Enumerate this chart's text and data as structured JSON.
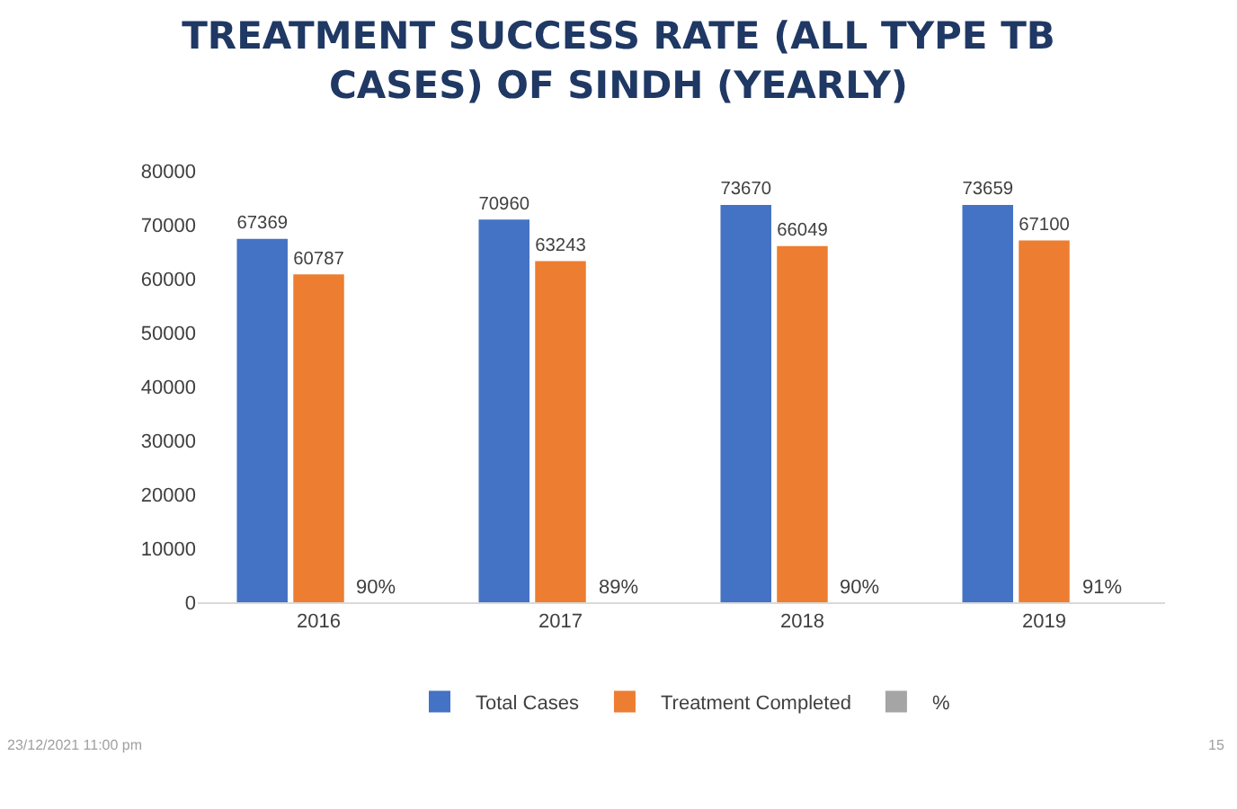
{
  "chart_data": {
    "type": "bar",
    "title": "TREATMENT SUCCESS RATE (ALL TYPE TB CASES) OF SINDH (YEARLY)",
    "categories": [
      "2016",
      "2017",
      "2018",
      "2019"
    ],
    "series": [
      {
        "name": "Total Cases",
        "color": "#4472c4",
        "values": [
          67369,
          70960,
          73670,
          73659
        ],
        "value_labels": [
          "67369",
          "70960",
          "73670",
          "73659"
        ]
      },
      {
        "name": "Treatment Completed",
        "color": "#ed7d31",
        "values": [
          60787,
          63243,
          66049,
          67100
        ],
        "value_labels": [
          "60787",
          "63243",
          "66049",
          "67100"
        ]
      },
      {
        "name": "%",
        "color": "#a5a5a5",
        "values": [
          null,
          null,
          null,
          null
        ]
      }
    ],
    "ylim": [
      0,
      80000
    ],
    "yticks": [
      0,
      10000,
      20000,
      30000,
      40000,
      50000,
      60000,
      70000,
      80000
    ],
    "grid": false,
    "legend": "bottom",
    "annotations": [
      {
        "text": "90%",
        "x": "2016",
        "y": 0
      },
      {
        "text": "89%",
        "x": "2017",
        "y": 0
      },
      {
        "text": "90%",
        "x": "2018",
        "y": 0
      },
      {
        "text": "91%",
        "x": "2019",
        "y": 0
      },
      "23/12/2021 11:00 pm",
      "15"
    ]
  }
}
